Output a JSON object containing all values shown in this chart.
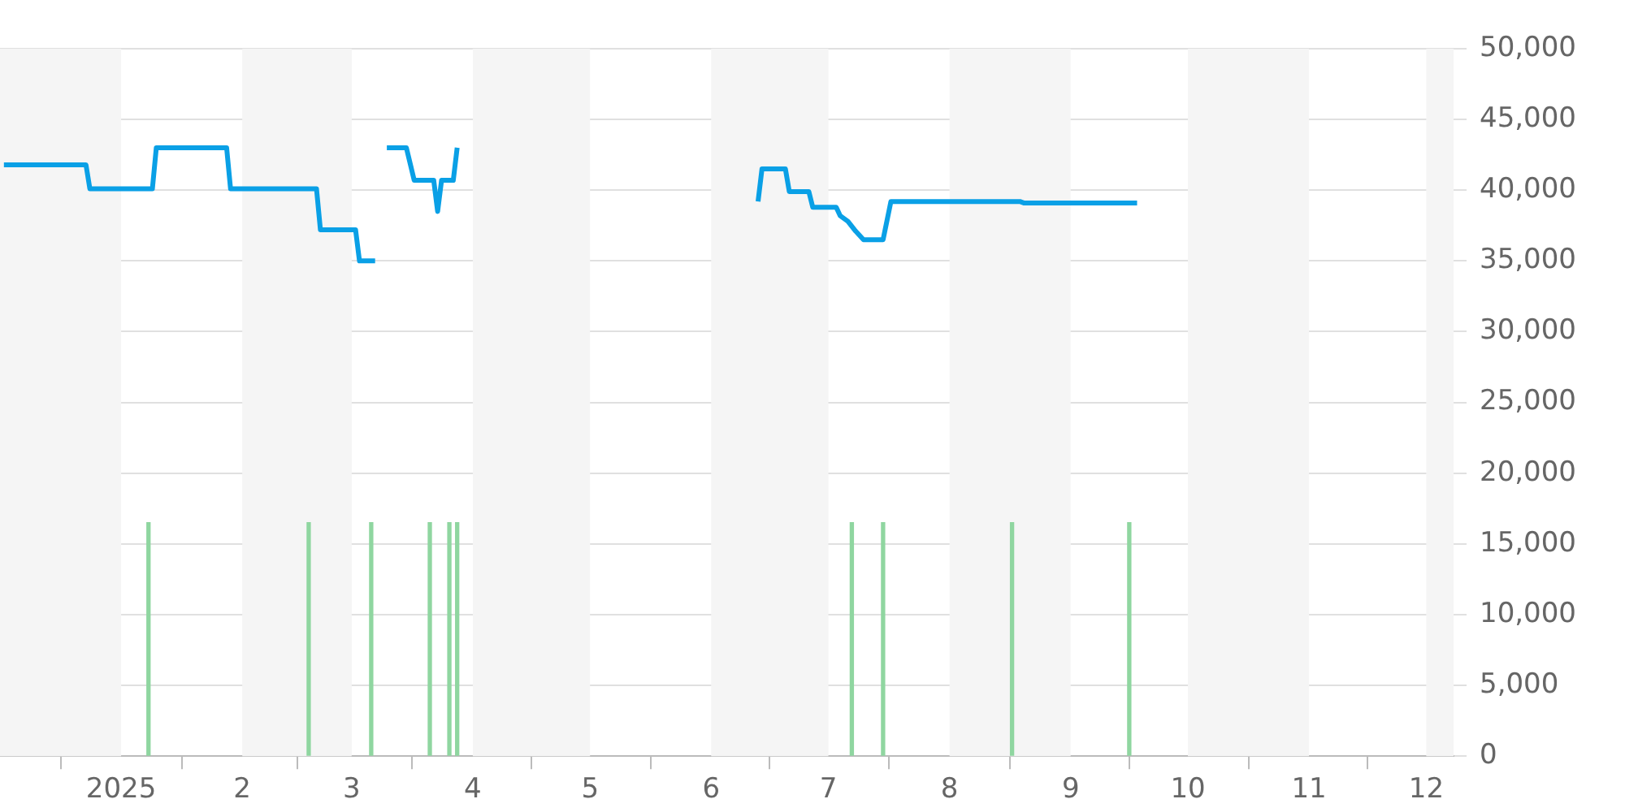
{
  "chart_data": {
    "type": "line",
    "series": [
      {
        "color": "#0aa0e6",
        "x": [
          "2024-12-02",
          "2024-12-23",
          "2024-12-24",
          "2025-01-09",
          "2025-01-10",
          "2025-01-28",
          "2025-01-29",
          "2025-02-20",
          "2025-02-21",
          "2025-03-02",
          "2025-03-03",
          "2025-03-07",
          "2025-03-08",
          "2025-03-10",
          "2025-03-15",
          "2025-03-17",
          "2025-03-22",
          "2025-03-23",
          "2025-03-24",
          "2025-03-27",
          "2025-03-28",
          "2025-05-01",
          "2025-06-13",
          "2025-06-14",
          "2025-06-20",
          "2025-06-21",
          "2025-06-26",
          "2025-06-27",
          "2025-07-03",
          "2025-07-04",
          "2025-07-06",
          "2025-07-08",
          "2025-07-10",
          "2025-07-15",
          "2025-07-17",
          "2025-08-19",
          "2025-08-20",
          "2025-09-18"
        ],
        "values": [
          41800,
          41800,
          40100,
          40100,
          43000,
          43000,
          40100,
          40100,
          37200,
          37200,
          35000,
          35000,
          null,
          43000,
          43000,
          40700,
          40700,
          38500,
          40700,
          40700,
          43000,
          null,
          39200,
          41500,
          41500,
          39900,
          39900,
          38800,
          38800,
          38200,
          37800,
          37100,
          36500,
          36500,
          39200,
          39200,
          39100,
          39100
        ]
      },
      {
        "type": "bar",
        "color": "#8fd6a0",
        "x": [
          "2025-01-08",
          "2025-02-18",
          "2025-03-06",
          "2025-03-21",
          "2025-03-26",
          "2025-03-28",
          "2025-07-07",
          "2025-07-15",
          "2025-08-17",
          "2025-09-16"
        ],
        "values": [
          16500,
          16500,
          16500,
          16500,
          16500,
          16500,
          16500,
          16500,
          16500,
          16500
        ]
      }
    ],
    "xlim": [
      "2024-12-01",
      "2025-12-08"
    ],
    "xticks": [
      {
        "value": "2025-01",
        "label": "2025"
      },
      {
        "value": "2025-02",
        "label": "2"
      },
      {
        "value": "2025-03",
        "label": "3"
      },
      {
        "value": "2025-04",
        "label": "4"
      },
      {
        "value": "2025-05",
        "label": "5"
      },
      {
        "value": "2025-06",
        "label": "6"
      },
      {
        "value": "2025-07",
        "label": "7"
      },
      {
        "value": "2025-08",
        "label": "8"
      },
      {
        "value": "2025-09",
        "label": "9"
      },
      {
        "value": "2025-10",
        "label": "10"
      },
      {
        "value": "2025-11",
        "label": "11"
      },
      {
        "value": "2025-12",
        "label": "12"
      }
    ],
    "ylim": [
      0,
      50000
    ],
    "yticks": [
      0,
      {
        "value": 5000,
        "label": "5,000"
      },
      {
        "value": 10000,
        "label": "10,000"
      },
      {
        "value": 15000,
        "label": "15,000"
      },
      {
        "value": 20000,
        "label": "20,000"
      },
      {
        "value": 25000,
        "label": "25,000"
      },
      {
        "value": 30000,
        "label": "30,000"
      },
      {
        "value": 35000,
        "label": "35,000"
      },
      {
        "value": 40000,
        "label": "40,000"
      },
      {
        "value": 45000,
        "label": "45,000"
      },
      {
        "value": 50000,
        "label": "50,000"
      }
    ],
    "bands": [
      {
        "axis": "x",
        "from": "2024-12-01",
        "to": "2025-01",
        "color": "#f5f5f5"
      },
      {
        "axis": "x",
        "from": "2025-02",
        "to": "2025-03",
        "color": "#f5f5f5"
      },
      {
        "axis": "x",
        "from": "2025-04",
        "to": "2025-05",
        "color": "#f5f5f5"
      },
      {
        "axis": "x",
        "from": "2025-06",
        "to": "2025-07",
        "color": "#f5f5f5"
      },
      {
        "axis": "x",
        "from": "2025-08",
        "to": "2025-09",
        "color": "#f5f5f5"
      },
      {
        "axis": "x",
        "from": "2025-10",
        "to": "2025-11",
        "color": "#f5f5f5"
      },
      {
        "axis": "x",
        "from": "2025-12",
        "to": "2025-12-08",
        "color": "#f5f5f5"
      }
    ],
    "grid": "y",
    "legend": false,
    "marker": "none"
  }
}
